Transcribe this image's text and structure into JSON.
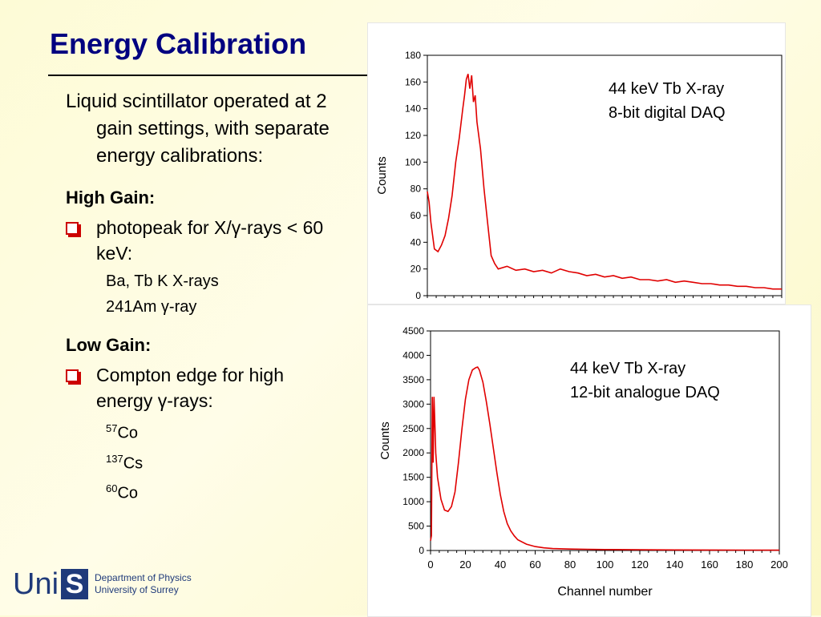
{
  "slide": {
    "title": "Energy Calibration",
    "intro": "Liquid scintillator operated at 2 gain settings, with separate energy calibrations:",
    "high_gain_heading": "High Gain:",
    "high_gain_bullet": "photopeak for X/γ-rays < 60 keV:",
    "high_gain_items": [
      "Ba, Tb K X-rays",
      "241Am γ-ray"
    ],
    "low_gain_heading": "Low Gain:",
    "low_gain_bullet": "Compton edge for high energy γ-rays:",
    "low_gain_items": [
      {
        "mass": "57",
        "symbol": "Co"
      },
      {
        "mass": "137",
        "symbol": "Cs"
      },
      {
        "mass": "60",
        "symbol": "Co"
      }
    ]
  },
  "logo": {
    "uni": "Uni",
    "s": "S",
    "dept_line1": "Department of Physics",
    "dept_line2": "University of Surrey"
  },
  "colors": {
    "title": "#000080",
    "bullet": "#cc0000",
    "trace": "#e00000",
    "logo": "#1f3a7a"
  },
  "chart_data": [
    {
      "type": "line",
      "annotation": [
        "44 keV Tb X-ray",
        "8-bit digital DAQ"
      ],
      "ylabel": "Counts",
      "xlabel": "",
      "ylim": [
        0,
        180
      ],
      "xlim": [
        0,
        200
      ],
      "yticks": [
        "0",
        "20",
        "40",
        "60",
        "80",
        "100",
        "120",
        "140",
        "160",
        "180"
      ],
      "xticks": [],
      "series": [
        {
          "x": [
            0,
            1,
            2,
            3,
            4,
            6,
            8,
            10,
            12,
            14,
            16,
            18,
            20,
            21,
            22,
            23,
            24,
            25,
            26,
            27,
            28,
            30,
            32,
            34,
            36,
            38,
            40,
            45,
            50,
            55,
            60,
            65,
            70,
            75,
            80,
            85,
            90,
            95,
            100,
            105,
            110,
            115,
            120,
            125,
            130,
            135,
            140,
            145,
            150,
            155,
            160,
            165,
            170,
            175,
            180,
            185,
            190,
            195,
            200
          ],
          "y": [
            78,
            70,
            55,
            45,
            35,
            33,
            38,
            45,
            58,
            75,
            100,
            118,
            140,
            150,
            162,
            166,
            155,
            165,
            145,
            150,
            130,
            110,
            80,
            55,
            30,
            24,
            20,
            22,
            19,
            20,
            18,
            19,
            17,
            20,
            18,
            17,
            15,
            16,
            14,
            15,
            13,
            14,
            12,
            12,
            11,
            12,
            10,
            11,
            10,
            9,
            9,
            8,
            8,
            7,
            7,
            6,
            6,
            5,
            5
          ]
        }
      ]
    },
    {
      "type": "line",
      "annotation": [
        "44 keV Tb X-ray",
        "12-bit analogue DAQ"
      ],
      "ylabel": "Counts",
      "xlabel": "Channel number",
      "ylim": [
        0,
        4500
      ],
      "xlim": [
        0,
        200
      ],
      "yticks": [
        "0",
        "500",
        "1000",
        "1500",
        "2000",
        "2500",
        "3000",
        "3500",
        "4000",
        "4500"
      ],
      "xticks": [
        "0",
        "20",
        "40",
        "60",
        "80",
        "100",
        "120",
        "140",
        "160",
        "180",
        "200"
      ],
      "series": [
        {
          "x": [
            0,
            0.5,
            1,
            1.5,
            2,
            2.5,
            3,
            4,
            6,
            8,
            10,
            12,
            14,
            16,
            18,
            20,
            22,
            24,
            26,
            27,
            28,
            30,
            32,
            34,
            36,
            38,
            40,
            42,
            44,
            46,
            48,
            50,
            55,
            60,
            65,
            70,
            80,
            90,
            100,
            120,
            140,
            160,
            180,
            200
          ],
          "y": [
            200,
            300,
            3150,
            1800,
            3150,
            2600,
            2000,
            1500,
            1050,
            830,
            800,
            900,
            1200,
            1800,
            2500,
            3100,
            3500,
            3700,
            3750,
            3760,
            3700,
            3450,
            3050,
            2600,
            2100,
            1600,
            1150,
            800,
            550,
            400,
            300,
            220,
            130,
            80,
            55,
            40,
            30,
            25,
            20,
            15,
            12,
            10,
            8,
            6
          ]
        }
      ]
    }
  ]
}
